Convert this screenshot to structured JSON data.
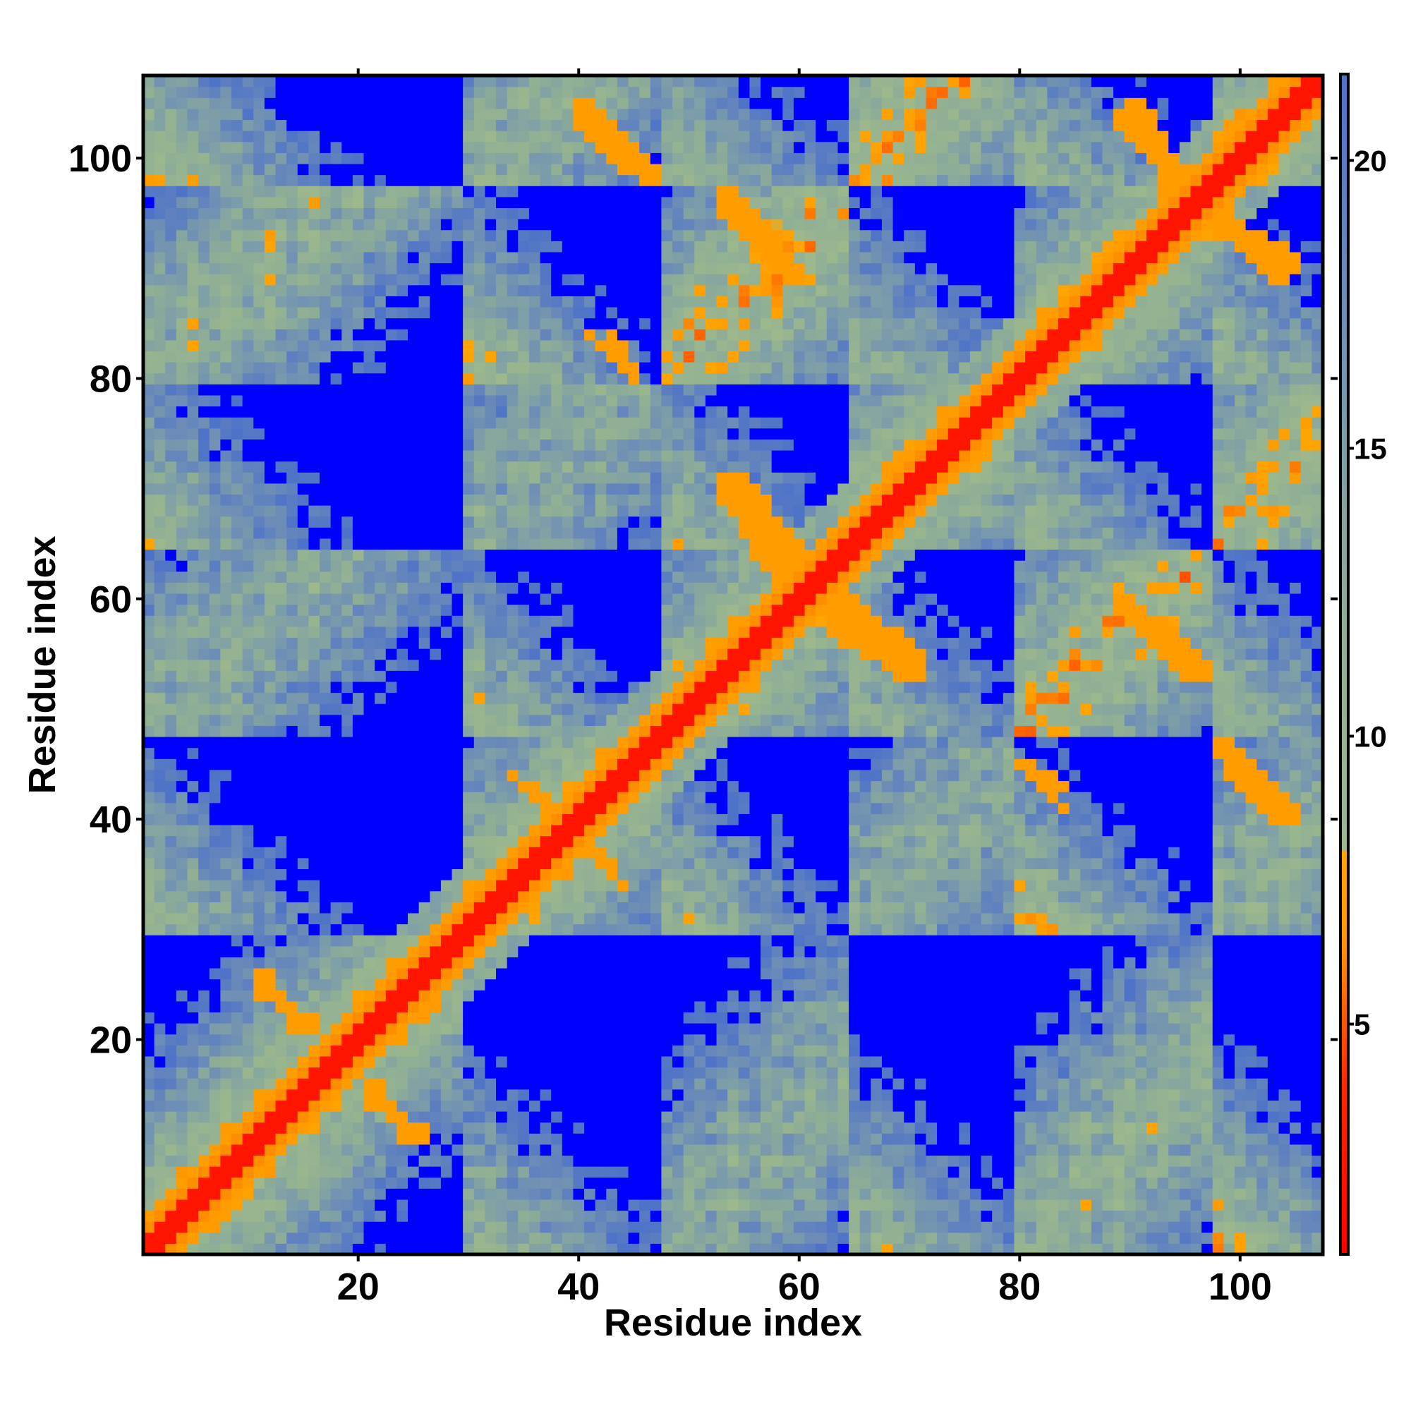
{
  "chart_data": {
    "type": "heatmap",
    "title": "",
    "xlabel": "Residue index",
    "ylabel": "Residue index",
    "n_residues": 107,
    "xlim": [
      1,
      107
    ],
    "ylim": [
      1,
      107
    ],
    "x_ticks": [
      "20",
      "40",
      "60",
      "80",
      "100"
    ],
    "y_ticks": [
      "20",
      "40",
      "60",
      "80",
      "100"
    ],
    "colorbar": {
      "ticks": [
        "5",
        "10",
        "15",
        "20"
      ],
      "range": [
        1,
        21.5
      ],
      "stops": [
        {
          "value": 1.0,
          "color": "#ff0000"
        },
        {
          "value": 4.0,
          "color": "#ff2a00"
        },
        {
          "value": 6.5,
          "color": "#ff9a00"
        },
        {
          "value": 8.0,
          "color": "#ffa500"
        },
        {
          "value": 8.01,
          "color": "#9db88c"
        },
        {
          "value": 12.0,
          "color": "#8fae96"
        },
        {
          "value": 15.0,
          "color": "#7d9ea8"
        },
        {
          "value": 18.0,
          "color": "#6a8ab9"
        },
        {
          "value": 21.5,
          "color": "#4d72c8"
        }
      ],
      "saturation_color": "#0000ff"
    },
    "helices": [
      [
        1,
        26
      ],
      [
        30,
        45
      ],
      [
        48,
        62
      ],
      [
        65,
        76
      ],
      [
        80,
        95
      ],
      [
        98,
        107
      ]
    ],
    "off_diagonal_contacts": [
      {
        "x": [
          40,
          46
        ],
        "y": [
          99,
          105
        ]
      },
      {
        "x": [
          53,
          59
        ],
        "y": [
          90,
          97
        ]
      },
      {
        "x": [
          43,
          45
        ],
        "y": [
          80,
          84
        ]
      },
      {
        "x": [
          53,
          58
        ],
        "y": [
          63,
          71
        ]
      },
      {
        "x": [
          63,
          71
        ],
        "y": [
          54,
          60
        ]
      },
      {
        "x": [
          34,
          37
        ],
        "y": [
          42,
          44
        ]
      },
      {
        "x": [
          41,
          44
        ],
        "y": [
          34,
          37
        ]
      },
      {
        "x": [
          11,
          15
        ],
        "y": [
          21,
          26
        ]
      },
      {
        "x": [
          21,
          25
        ],
        "y": [
          11,
          16
        ]
      },
      {
        "x": [
          90,
          95
        ],
        "y": [
          97,
          105
        ]
      },
      {
        "x": [
          98,
          104
        ],
        "y": [
          89,
          95
        ]
      },
      {
        "x": [
          89,
          96
        ],
        "y": [
          53,
          60
        ]
      },
      {
        "x": [
          98,
          104
        ],
        "y": [
          40,
          47
        ]
      },
      {
        "x": [
          81,
          84
        ],
        "y": [
          41,
          44
        ]
      }
    ]
  }
}
